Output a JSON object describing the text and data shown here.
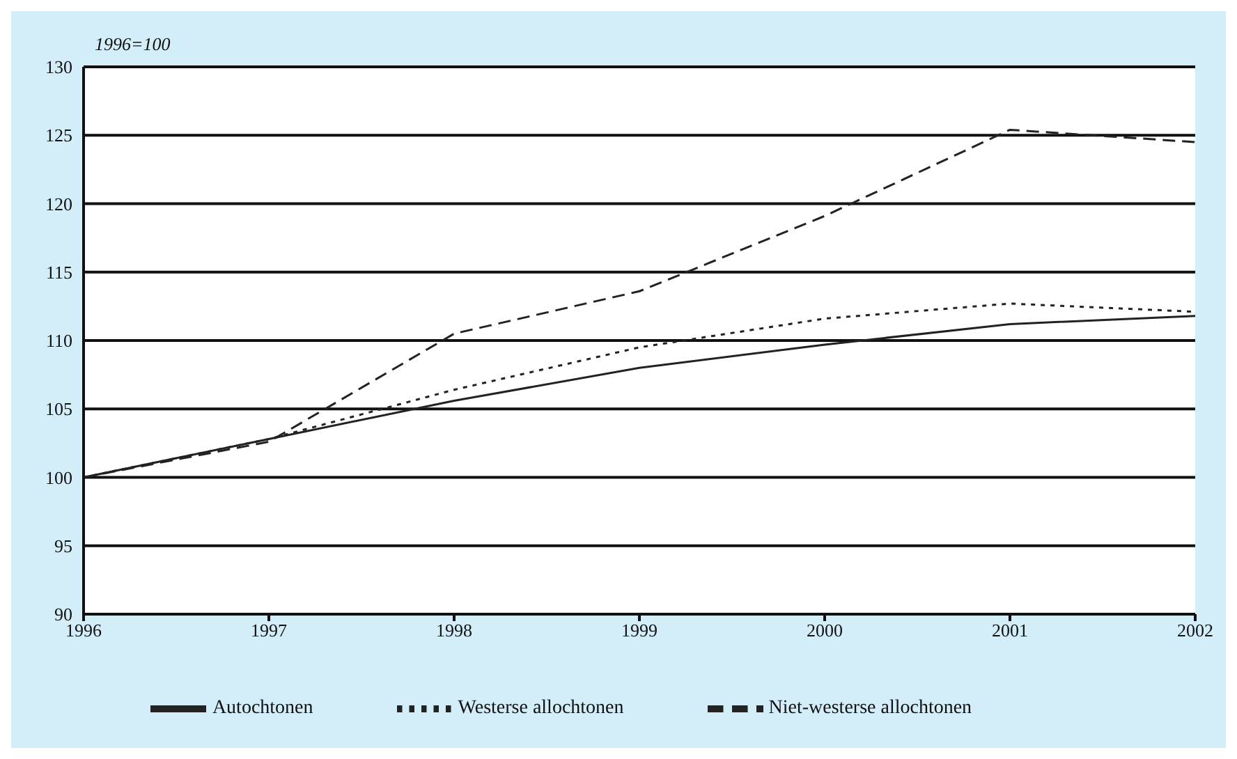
{
  "chart_data": {
    "type": "line",
    "ylabel": "1996=100",
    "x": [
      1996,
      1997,
      1998,
      1999,
      2000,
      2001,
      2002
    ],
    "xlim": [
      1996,
      2002
    ],
    "xticks": [
      1996,
      1997,
      1998,
      1999,
      2000,
      2001,
      2002
    ],
    "ylim": [
      90,
      130
    ],
    "yticks": [
      90,
      95,
      100,
      105,
      110,
      115,
      120,
      125,
      130
    ],
    "grid": "y",
    "legend": "bottom",
    "marker": "none",
    "series": [
      {
        "name": "Autochtonen",
        "color": "#222222",
        "line_style": "solid",
        "values": [
          100,
          102.8,
          105.6,
          108,
          109.7,
          111.2,
          111.8
        ]
      },
      {
        "name": "Westerse allochtonen",
        "color": "#222222",
        "line_style": "dotted",
        "values": [
          100,
          102.8,
          106.4,
          109.5,
          111.6,
          112.7,
          112.1
        ]
      },
      {
        "name": "Niet-westerse allochtonen",
        "color": "#222222",
        "line_style": "dashed",
        "values": [
          100,
          102.6,
          110.5,
          113.6,
          119.1,
          125.4,
          124.5
        ]
      }
    ]
  }
}
